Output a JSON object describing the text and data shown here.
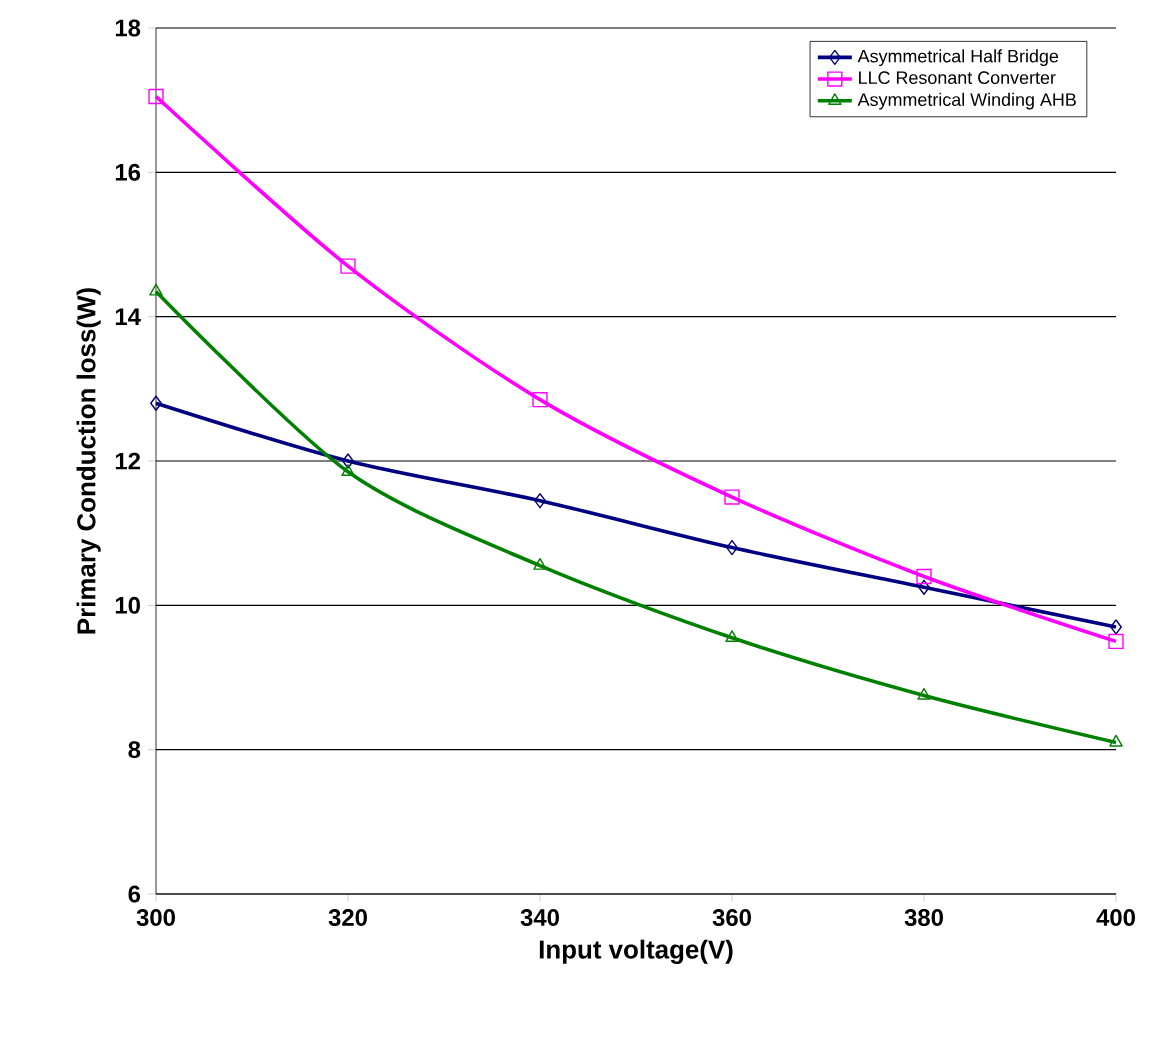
{
  "chart_data": {
    "type": "line",
    "xlabel": "Input voltage(V)",
    "ylabel": "Primary Conduction loss(W)",
    "x": [
      300,
      320,
      340,
      360,
      380,
      400
    ],
    "series": [
      {
        "name": "Asymmetrical Half Bridge",
        "color": "#000080",
        "marker": "diamond",
        "values": [
          12.8,
          12.0,
          11.45,
          10.8,
          10.25,
          9.7
        ]
      },
      {
        "name": "LLC Resonant Converter",
        "color": "#ff00ff",
        "marker": "square",
        "values": [
          17.05,
          14.7,
          12.85,
          11.5,
          10.4,
          9.5
        ]
      },
      {
        "name": "Asymmetrical Winding AHB",
        "color": "#008000",
        "marker": "triangle",
        "values": [
          14.35,
          11.85,
          10.55,
          9.55,
          8.75,
          8.1
        ]
      }
    ],
    "xlim": [
      300,
      400
    ],
    "xticks": [
      300,
      320,
      340,
      360,
      380,
      400
    ],
    "ylim": [
      6,
      18
    ],
    "yticks": [
      6,
      8,
      10,
      12,
      14,
      16,
      18
    ],
    "grid": "y",
    "legend": "top right",
    "line_style": "solid"
  }
}
